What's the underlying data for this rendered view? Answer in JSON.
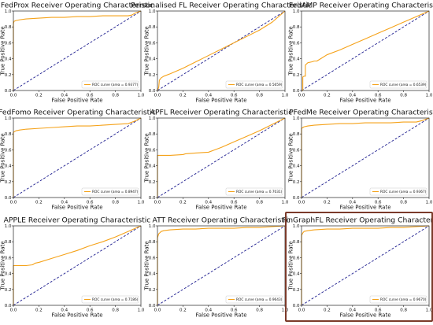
{
  "colors": {
    "roc": "#f5a219",
    "diagonal": "#1d1d8f",
    "highlight": "#7b3a2a"
  },
  "highlighted_index": 8,
  "chart_data": [
    {
      "type": "line",
      "title": "FedProx Receiver Operating Characteristic",
      "xlabel": "False Positive Rate",
      "ylabel": "True Positive Rate",
      "xlim": [
        0,
        1
      ],
      "ylim": [
        0,
        1
      ],
      "xticks": [
        "0.0",
        "0.2",
        "0.4",
        "0.6",
        "0.8",
        "1.0"
      ],
      "yticks": [
        "0.0",
        "0.2",
        "0.4",
        "0.6",
        "0.8",
        "1.0"
      ],
      "legend": "ROC curve (area = 0.9377)",
      "legend_position": "lower-right",
      "series": [
        {
          "x": [
            0,
            0,
            0.005,
            0.02,
            0.05,
            0.1,
            0.2,
            0.3,
            0.4,
            0.5,
            0.6,
            0.7,
            0.8,
            0.9,
            0.93,
            0.95,
            1.0
          ],
          "y": [
            0,
            0.84,
            0.87,
            0.88,
            0.89,
            0.9,
            0.91,
            0.92,
            0.92,
            0.93,
            0.93,
            0.94,
            0.94,
            0.94,
            0.95,
            0.97,
            1.0
          ]
        },
        {
          "x": [
            0,
            1
          ],
          "y": [
            0,
            1
          ]
        }
      ]
    },
    {
      "type": "line",
      "title": "Personalised FL Receiver Operating Characteristic",
      "xlabel": "False Positive Rate",
      "ylabel": "True Positive Rate",
      "xlim": [
        0,
        1
      ],
      "ylim": [
        0,
        1
      ],
      "xticks": [
        "0.0",
        "0.2",
        "0.4",
        "0.6",
        "0.8",
        "1.0"
      ],
      "yticks": [
        "0.0",
        "0.2",
        "0.4",
        "0.6",
        "0.8",
        "1.0"
      ],
      "legend": "ROC curve (area = 0.5659)",
      "legend_position": "lower-right",
      "series": [
        {
          "x": [
            0,
            0.01,
            0.015,
            0.02,
            0.03,
            0.05,
            0.1,
            0.2,
            0.3,
            0.4,
            0.5,
            0.6,
            0.7,
            0.8,
            0.9,
            1.0
          ],
          "y": [
            0,
            0.04,
            0.13,
            0.14,
            0.16,
            0.18,
            0.21,
            0.28,
            0.36,
            0.44,
            0.52,
            0.6,
            0.68,
            0.76,
            0.86,
            1.0
          ]
        },
        {
          "x": [
            0,
            1
          ],
          "y": [
            0,
            1
          ]
        }
      ]
    },
    {
      "type": "line",
      "title": "FedAMP Receiver Operating Characteristic",
      "xlabel": "False Positive Rate",
      "ylabel": "True Positive Rate",
      "xlim": [
        0,
        1
      ],
      "ylim": [
        0,
        1
      ],
      "xticks": [
        "0.0",
        "0.2",
        "0.4",
        "0.6",
        "0.8",
        "1.0"
      ],
      "yticks": [
        "0.0",
        "0.2",
        "0.4",
        "0.6",
        "0.8",
        "1.0"
      ],
      "legend": "ROC curve (area = 0.6539)",
      "legend_position": "lower-right",
      "series": [
        {
          "x": [
            0,
            0.01,
            0.01,
            0.02,
            0.03,
            0.03,
            0.05,
            0.08,
            0.1,
            0.12,
            0.15,
            0.2,
            0.3,
            0.4,
            0.5,
            0.6,
            0.7,
            0.8,
            0.9,
            1.0
          ],
          "y": [
            0,
            0,
            0.17,
            0.18,
            0.18,
            0.32,
            0.35,
            0.36,
            0.37,
            0.37,
            0.4,
            0.45,
            0.51,
            0.58,
            0.65,
            0.72,
            0.79,
            0.86,
            0.93,
            1.0
          ]
        },
        {
          "x": [
            0,
            1
          ],
          "y": [
            0,
            1
          ]
        }
      ]
    },
    {
      "type": "line",
      "title": "FedFomo Receiver Operating Characteristic",
      "xlabel": "False Positive Rate",
      "ylabel": "True Positive Rate",
      "xlim": [
        0,
        1
      ],
      "ylim": [
        0,
        1
      ],
      "xticks": [
        "0.0",
        "0.2",
        "0.4",
        "0.6",
        "0.8",
        "1.0"
      ],
      "yticks": [
        "0.0",
        "0.2",
        "0.4",
        "0.6",
        "0.8",
        "1.0"
      ],
      "legend": "ROC curve (area = 0.8947)",
      "legend_position": "lower-right",
      "series": [
        {
          "x": [
            0,
            0,
            0.02,
            0.05,
            0.1,
            0.2,
            0.3,
            0.4,
            0.5,
            0.6,
            0.7,
            0.8,
            0.9,
            0.95,
            1.0
          ],
          "y": [
            0,
            0.82,
            0.84,
            0.85,
            0.86,
            0.87,
            0.88,
            0.89,
            0.9,
            0.9,
            0.91,
            0.92,
            0.93,
            0.96,
            1.0
          ]
        },
        {
          "x": [
            0,
            1
          ],
          "y": [
            0,
            1
          ]
        }
      ]
    },
    {
      "type": "line",
      "title": "APFL Receiver Operating Characteristic",
      "xlabel": "False Positive Rate",
      "ylabel": "True Positive Rate",
      "xlim": [
        0,
        1
      ],
      "ylim": [
        0,
        1
      ],
      "xticks": [
        "0.0",
        "0.2",
        "0.4",
        "0.6",
        "0.8",
        "1.0"
      ],
      "yticks": [
        "0.0",
        "0.2",
        "0.4",
        "0.6",
        "0.8",
        "1.0"
      ],
      "legend": "ROC curve (area = 0.7031)",
      "legend_position": "lower-right",
      "series": [
        {
          "x": [
            0,
            0,
            0.05,
            0.1,
            0.2,
            0.22,
            0.3,
            0.4,
            0.45,
            0.5,
            0.6,
            0.7,
            0.8,
            0.9,
            1.0
          ],
          "y": [
            0,
            0.53,
            0.53,
            0.53,
            0.54,
            0.55,
            0.56,
            0.57,
            0.6,
            0.63,
            0.7,
            0.77,
            0.84,
            0.92,
            1.0
          ]
        },
        {
          "x": [
            0,
            1
          ],
          "y": [
            0,
            1
          ]
        }
      ]
    },
    {
      "type": "line",
      "title": "PFedMe Receiver Operating Characteristic",
      "xlabel": "False Positive Rate",
      "ylabel": "True Positive Rate",
      "xlim": [
        0,
        1
      ],
      "ylim": [
        0,
        1
      ],
      "xticks": [
        "0.0",
        "0.2",
        "0.4",
        "0.6",
        "0.8",
        "1.0"
      ],
      "yticks": [
        "0.0",
        "0.2",
        "0.4",
        "0.6",
        "0.8",
        "1.0"
      ],
      "legend": "ROC curve (area = 0.9367)",
      "legend_position": "lower-right",
      "series": [
        {
          "x": [
            0,
            0,
            0.02,
            0.05,
            0.1,
            0.2,
            0.3,
            0.4,
            0.5,
            0.6,
            0.7,
            0.8,
            0.9,
            0.95,
            1.0
          ],
          "y": [
            0,
            0.87,
            0.89,
            0.9,
            0.91,
            0.92,
            0.93,
            0.93,
            0.94,
            0.94,
            0.94,
            0.95,
            0.95,
            0.97,
            1.0
          ]
        },
        {
          "x": [
            0,
            1
          ],
          "y": [
            0,
            1
          ]
        }
      ]
    },
    {
      "type": "line",
      "title": "APPLE Receiver Operating Characteristic",
      "xlabel": "False Positive Rate",
      "ylabel": "True Positive Rate",
      "xlim": [
        0,
        1
      ],
      "ylim": [
        0,
        1
      ],
      "xticks": [
        "0.0",
        "0.2",
        "0.4",
        "0.6",
        "0.8",
        "1.0"
      ],
      "yticks": [
        "0.0",
        "0.2",
        "0.4",
        "0.6",
        "0.8",
        "1.0"
      ],
      "legend": "ROC curve (area = 0.7186)",
      "legend_position": "lower-right",
      "series": [
        {
          "x": [
            0,
            0,
            0.05,
            0.1,
            0.15,
            0.17,
            0.2,
            0.3,
            0.4,
            0.5,
            0.6,
            0.7,
            0.8,
            0.9,
            1.0
          ],
          "y": [
            0,
            0.5,
            0.5,
            0.5,
            0.51,
            0.53,
            0.54,
            0.59,
            0.64,
            0.69,
            0.75,
            0.8,
            0.86,
            0.93,
            1.0
          ]
        },
        {
          "x": [
            0,
            1
          ],
          "y": [
            0,
            1
          ]
        }
      ]
    },
    {
      "type": "line",
      "title": "ATT Receiver Operating Characteristic",
      "xlabel": "False Positive Rate",
      "ylabel": "True Positive Rate",
      "xlim": [
        0,
        1
      ],
      "ylim": [
        0,
        1
      ],
      "xticks": [
        "0.0",
        "0.2",
        "0.4",
        "0.6",
        "0.8",
        "1.0"
      ],
      "yticks": [
        "0.0",
        "0.2",
        "0.4",
        "0.6",
        "0.8",
        "1.0"
      ],
      "legend": "ROC curve (area = 0.9643)",
      "legend_position": "lower-right",
      "series": [
        {
          "x": [
            0,
            0,
            0.01,
            0.03,
            0.05,
            0.1,
            0.2,
            0.3,
            0.4,
            0.5,
            0.6,
            0.7,
            0.8,
            0.9,
            1.0
          ],
          "y": [
            0,
            0.85,
            0.9,
            0.93,
            0.94,
            0.95,
            0.96,
            0.96,
            0.97,
            0.97,
            0.97,
            0.98,
            0.98,
            0.99,
            1.0
          ]
        },
        {
          "x": [
            0,
            1
          ],
          "y": [
            0,
            1
          ]
        }
      ]
    },
    {
      "type": "line",
      "title": "FinGraphFL Receiver Operating Characteristic",
      "xlabel": "False Positive Rate",
      "ylabel": "True Positive Rate",
      "xlim": [
        0,
        1
      ],
      "ylim": [
        0,
        1
      ],
      "xticks": [
        "0.0",
        "0.2",
        "0.4",
        "0.6",
        "0.8",
        "1.0"
      ],
      "yticks": [
        "0.0",
        "0.2",
        "0.4",
        "0.6",
        "0.8",
        "1.0"
      ],
      "legend": "ROC curve (area = 0.9670)",
      "legend_position": "lower-right",
      "series": [
        {
          "x": [
            0,
            0,
            0.01,
            0.02,
            0.05,
            0.1,
            0.2,
            0.3,
            0.4,
            0.5,
            0.6,
            0.7,
            0.8,
            0.9,
            1.0
          ],
          "y": [
            0,
            0.88,
            0.91,
            0.93,
            0.94,
            0.95,
            0.96,
            0.96,
            0.97,
            0.97,
            0.97,
            0.98,
            0.98,
            0.99,
            1.0
          ]
        },
        {
          "x": [
            0,
            1
          ],
          "y": [
            0,
            1
          ]
        }
      ]
    }
  ]
}
